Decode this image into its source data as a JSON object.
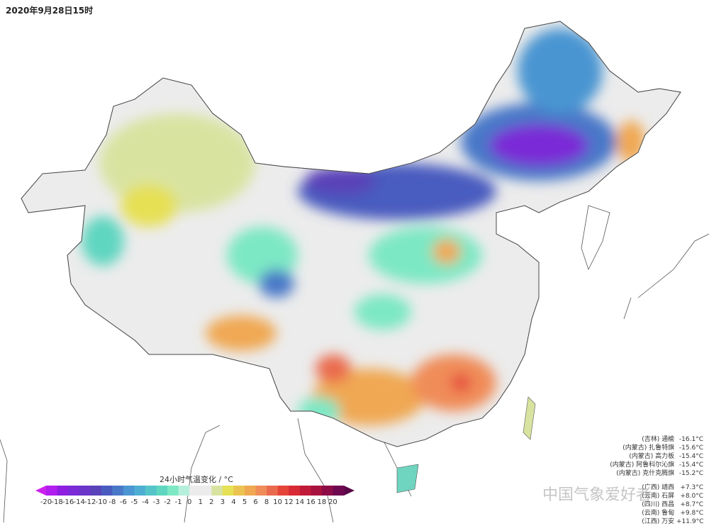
{
  "title": "2020年9月28日15时",
  "colorbar": {
    "title": "24小时气温变化 / °C",
    "ticks": [
      "-20",
      "-18",
      "-16",
      "-14",
      "-12",
      "-10",
      "-8",
      "-6",
      "-5",
      "-4",
      "-3",
      "-2",
      "-1",
      "0",
      "1",
      "2",
      "3",
      "4",
      "5",
      "6",
      "8",
      "10",
      "12",
      "14",
      "16",
      "18",
      "20"
    ],
    "colors": [
      "#b01ef0",
      "#8f1fe0",
      "#7a2ad6",
      "#6a35c8",
      "#5a42b8",
      "#4a5bbf",
      "#4a78c8",
      "#4a95d2",
      "#4eaed2",
      "#55c4c8",
      "#5fd6c0",
      "#7de8c4",
      "#b6f0dc",
      "#ececec",
      "#ececec",
      "#d9e3a0",
      "#e6e055",
      "#ecc350",
      "#f0a852",
      "#f08c58",
      "#ea6a4e",
      "#e5443a",
      "#d82a34",
      "#c11a38",
      "#a8123e",
      "#8d0c48",
      "#6e0850"
    ],
    "min_arrow": "#cc22ee",
    "max_arrow": "#5a0848"
  },
  "stations_cooling": [
    {
      "region": "(吉林)",
      "name": "通榆",
      "value": "-16.1°C"
    },
    {
      "region": "(内蒙古)",
      "name": "扎鲁特旗",
      "value": "-15.6°C"
    },
    {
      "region": "(内蒙古)",
      "name": "高力板",
      "value": "-15.4°C"
    },
    {
      "region": "(内蒙古)",
      "name": "阿鲁科尔沁旗",
      "value": "-15.4°C"
    },
    {
      "region": "(内蒙古)",
      "name": "克什克腾旗",
      "value": "-15.2°C"
    }
  ],
  "stations_warming": [
    {
      "region": "(广西)",
      "name": "靖西",
      "value": "+7.3°C"
    },
    {
      "region": "(云南)",
      "name": "石屏",
      "value": "+8.0°C"
    },
    {
      "region": "(四川)",
      "name": "西昌",
      "value": "+8.7°C"
    },
    {
      "region": "(云南)",
      "name": "鲁甸",
      "value": "+9.8°C"
    },
    {
      "region": "(江西)",
      "name": "万安",
      "value": "+11.9°C"
    }
  ],
  "watermark": "中国气象爱好者"
}
